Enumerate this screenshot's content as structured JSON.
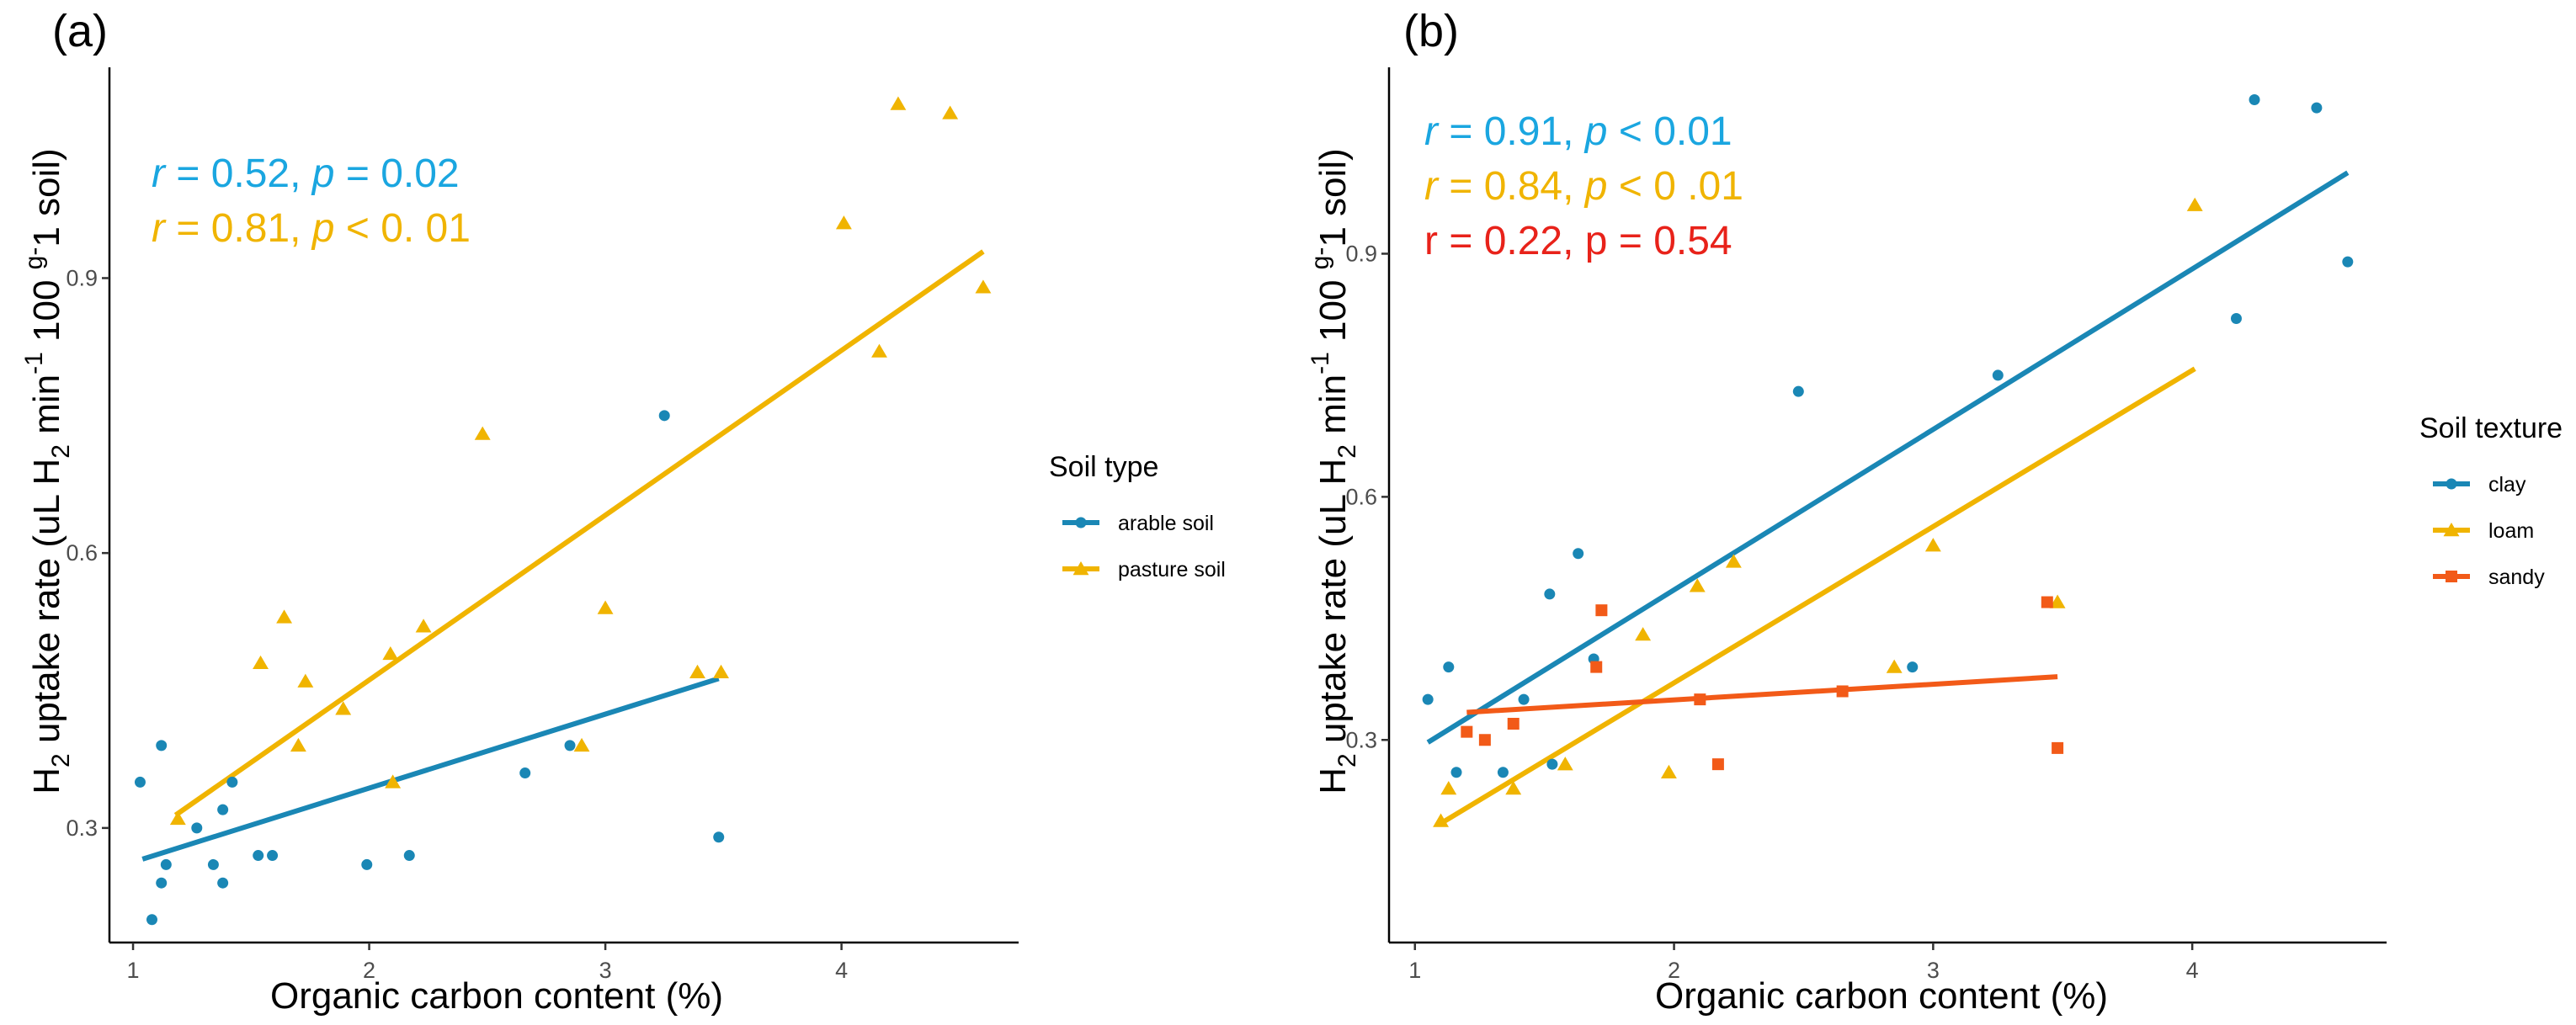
{
  "colors": {
    "arable": "#1a87b5",
    "pasture": "#f0b400",
    "clay": "#1a87b5",
    "loam": "#f0b400",
    "sandy": "#f25a18",
    "ann_blue": "#1aa6e0",
    "ann_orange": "#f0b400",
    "ann_red": "#e8221a"
  },
  "chart_data": [
    {
      "panel_label": "(a)",
      "type": "scatter",
      "xlabel": "Organic carbon content (%)",
      "ylabel": "H2 uptake rate (uL H2 min-1 100 g-1 soil)",
      "xlim": [
        0.9,
        4.75
      ],
      "ylim": [
        0.175,
        1.13
      ],
      "xticks": [
        "1",
        "2",
        "3",
        "4"
      ],
      "yticks": [
        "0.3",
        "0.6",
        "0.9"
      ],
      "legend": {
        "title": "Soil type",
        "position": "right"
      },
      "series": [
        {
          "name": "arable soil",
          "marker": "circle",
          "color": "#1a87b5",
          "points": [
            [
              1.03,
              0.35
            ],
            [
              1.08,
              0.2
            ],
            [
              1.12,
              0.39
            ],
            [
              1.12,
              0.24
            ],
            [
              1.14,
              0.26
            ],
            [
              1.27,
              0.3
            ],
            [
              1.34,
              0.26
            ],
            [
              1.38,
              0.32
            ],
            [
              1.38,
              0.24
            ],
            [
              1.42,
              0.35
            ],
            [
              1.53,
              0.27
            ],
            [
              1.59,
              0.27
            ],
            [
              1.99,
              0.26
            ],
            [
              2.17,
              0.27
            ],
            [
              2.66,
              0.36
            ],
            [
              2.85,
              0.39
            ],
            [
              3.25,
              0.75
            ],
            [
              3.48,
              0.29
            ]
          ],
          "fit": {
            "x": [
              1.04,
              3.48
            ],
            "y": [
              0.266,
              0.463
            ]
          },
          "annotation": {
            "r": "0.52",
            "p": "0.02",
            "op": "="
          }
        },
        {
          "name": "pasture soil",
          "marker": "triangle",
          "color": "#f0b400",
          "points": [
            [
              1.19,
              0.31
            ],
            [
              1.54,
              0.48
            ],
            [
              1.64,
              0.53
            ],
            [
              1.7,
              0.39
            ],
            [
              1.73,
              0.46
            ],
            [
              1.89,
              0.43
            ],
            [
              2.09,
              0.49
            ],
            [
              2.1,
              0.35
            ],
            [
              2.23,
              0.52
            ],
            [
              2.48,
              0.73
            ],
            [
              2.9,
              0.39
            ],
            [
              3.0,
              0.54
            ],
            [
              3.39,
              0.47
            ],
            [
              3.49,
              0.47
            ],
            [
              4.01,
              0.96
            ],
            [
              4.16,
              0.82
            ],
            [
              4.24,
              1.09
            ],
            [
              4.46,
              1.08
            ],
            [
              4.6,
              0.89
            ]
          ],
          "fit": {
            "x": [
              1.18,
              4.6
            ],
            "y": [
              0.314,
              0.929
            ]
          },
          "annotation": {
            "r": "0.81",
            "p": "0. 01",
            "op": "<"
          }
        }
      ]
    },
    {
      "panel_label": "(b)",
      "type": "scatter",
      "xlabel": "Organic carbon content (%)",
      "ylabel": "H2 uptake rate (uL H2 min-1 100 g-1 soil)",
      "xlim": [
        0.9,
        4.75
      ],
      "ylim": [
        0.05,
        1.13
      ],
      "xticks": [
        "1",
        "2",
        "3",
        "4"
      ],
      "yticks": [
        "0.3",
        "0.6",
        "0.9"
      ],
      "legend": {
        "title": "Soil texture",
        "position": "right"
      },
      "series": [
        {
          "name": "clay",
          "marker": "circle",
          "color": "#1a87b5",
          "points": [
            [
              1.05,
              0.35
            ],
            [
              1.13,
              0.39
            ],
            [
              1.16,
              0.26
            ],
            [
              1.34,
              0.26
            ],
            [
              1.42,
              0.35
            ],
            [
              1.52,
              0.48
            ],
            [
              1.53,
              0.27
            ],
            [
              1.63,
              0.53
            ],
            [
              1.69,
              0.4
            ],
            [
              2.48,
              0.73
            ],
            [
              2.92,
              0.39
            ],
            [
              3.25,
              0.75
            ],
            [
              4.17,
              0.82
            ],
            [
              4.24,
              1.09
            ],
            [
              4.48,
              1.08
            ],
            [
              4.6,
              0.89
            ]
          ],
          "fit": {
            "x": [
              1.05,
              4.6
            ],
            "y": [
              0.297,
              1.0
            ]
          },
          "annotation": {
            "r": "0.91",
            "p": "0.01",
            "op": "<"
          }
        },
        {
          "name": "loam",
          "marker": "triangle",
          "color": "#f0b400",
          "points": [
            [
              1.1,
              0.2
            ],
            [
              1.13,
              0.24
            ],
            [
              1.38,
              0.24
            ],
            [
              1.58,
              0.27
            ],
            [
              1.88,
              0.43
            ],
            [
              1.98,
              0.26
            ],
            [
              2.09,
              0.49
            ],
            [
              2.23,
              0.52
            ],
            [
              2.85,
              0.39
            ],
            [
              3.0,
              0.54
            ],
            [
              3.48,
              0.47
            ],
            [
              4.01,
              0.96
            ]
          ],
          "fit": {
            "x": [
              1.1,
              4.01
            ],
            "y": [
              0.197,
              0.758
            ]
          },
          "annotation": {
            "r": "0.84",
            "p": "0 .01",
            "op": "<"
          }
        },
        {
          "name": "sandy",
          "marker": "square",
          "color": "#f25a18",
          "points": [
            [
              1.2,
              0.31
            ],
            [
              1.27,
              0.3
            ],
            [
              1.38,
              0.32
            ],
            [
              1.7,
              0.39
            ],
            [
              1.72,
              0.46
            ],
            [
              2.1,
              0.35
            ],
            [
              2.17,
              0.27
            ],
            [
              2.65,
              0.36
            ],
            [
              3.44,
              0.47
            ],
            [
              3.48,
              0.29
            ]
          ],
          "fit": {
            "x": [
              1.2,
              3.48
            ],
            "y": [
              0.334,
              0.378
            ]
          },
          "annotation": {
            "r": "0.22",
            "p": "0.54",
            "op": "="
          }
        }
      ]
    }
  ]
}
